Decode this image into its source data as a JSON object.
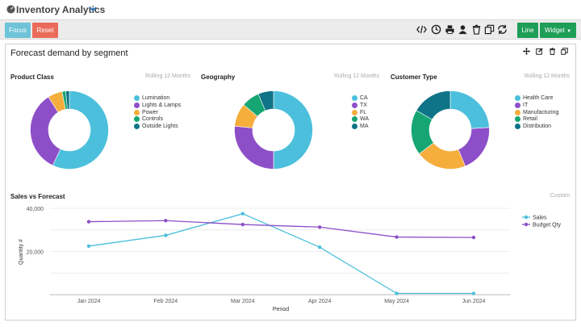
{
  "header": {
    "title": "Inventory Analytics"
  },
  "toolbar": {
    "focus_label": "Focus",
    "reset_label": "Reset",
    "line_label": "Line",
    "widget_label": "Widget"
  },
  "panel": {
    "title": "Forecast demand by segment"
  },
  "colors": {
    "cyan": "#4bbfdc",
    "purple": "#8d4fc8",
    "orange": "#f5ad3c",
    "green": "#16a673",
    "teal": "#0e7488",
    "gray": "#dddddd"
  },
  "donuts": [
    {
      "title": "Product Class",
      "meta": "Rolling 12 Months",
      "legend": [
        {
          "label": "Lumination",
          "color": "#4bbfdc"
        },
        {
          "label": "Lights & Lamps",
          "color": "#8d4fc8"
        },
        {
          "label": "Power",
          "color": "#f5ad3c"
        },
        {
          "label": "Controls",
          "color": "#16a673"
        },
        {
          "label": "Outside Lights",
          "color": "#0e7488"
        }
      ]
    },
    {
      "title": "Geography",
      "meta": "Rolling 12 Months",
      "legend": [
        {
          "label": "CA",
          "color": "#4bbfdc"
        },
        {
          "label": "TX",
          "color": "#8d4fc8"
        },
        {
          "label": "FL",
          "color": "#f5ad3c"
        },
        {
          "label": "WA",
          "color": "#16a673"
        },
        {
          "label": "MA",
          "color": "#0e7488"
        }
      ]
    },
    {
      "title": "Customer Type",
      "meta": "Rolling 12 Months",
      "legend": [
        {
          "label": "Health Care",
          "color": "#4bbfdc"
        },
        {
          "label": "IT",
          "color": "#8d4fc8"
        },
        {
          "label": "Manufacturing",
          "color": "#f5ad3c"
        },
        {
          "label": "Retail",
          "color": "#16a673"
        },
        {
          "label": "Distribution",
          "color": "#0e7488"
        }
      ]
    }
  ],
  "line_section": {
    "title": "Sales vs Forecast",
    "meta": "Custom"
  },
  "chart_data": [
    {
      "type": "pie",
      "title": "Product Class",
      "categories": [
        "Lumination",
        "Lights & Lamps",
        "Power",
        "Controls",
        "Outside Lights"
      ],
      "values": [
        57,
        34,
        6,
        1.5,
        1.5
      ]
    },
    {
      "type": "pie",
      "title": "Geography",
      "categories": [
        "CA",
        "TX",
        "FL",
        "WA",
        "MA"
      ],
      "values": [
        47,
        25,
        9,
        7,
        6
      ]
    },
    {
      "type": "pie",
      "title": "Customer Type",
      "categories": [
        "Health Care",
        "IT",
        "Manufacturing",
        "Retail",
        "Distribution"
      ],
      "values": [
        23,
        19,
        20,
        18,
        16
      ]
    },
    {
      "type": "line",
      "title": "Sales vs Forecast",
      "xlabel": "Period",
      "ylabel": "Quantity #",
      "categories": [
        "Jan 2024",
        "Feb 2024",
        "Mar 2024",
        "Apr 2024",
        "May 2024",
        "Jun 2024"
      ],
      "yticks": [
        "20,000",
        "40,000"
      ],
      "ylim": [
        0,
        40000
      ],
      "series": [
        {
          "name": "Sales",
          "color": "#4bbfdc",
          "values": [
            22500,
            27500,
            37500,
            22000,
            600,
            600
          ]
        },
        {
          "name": "Budget Qty",
          "color": "#8d4fc8",
          "values": [
            33800,
            34300,
            32500,
            31300,
            26700,
            26500
          ]
        }
      ],
      "legend": "right"
    }
  ]
}
